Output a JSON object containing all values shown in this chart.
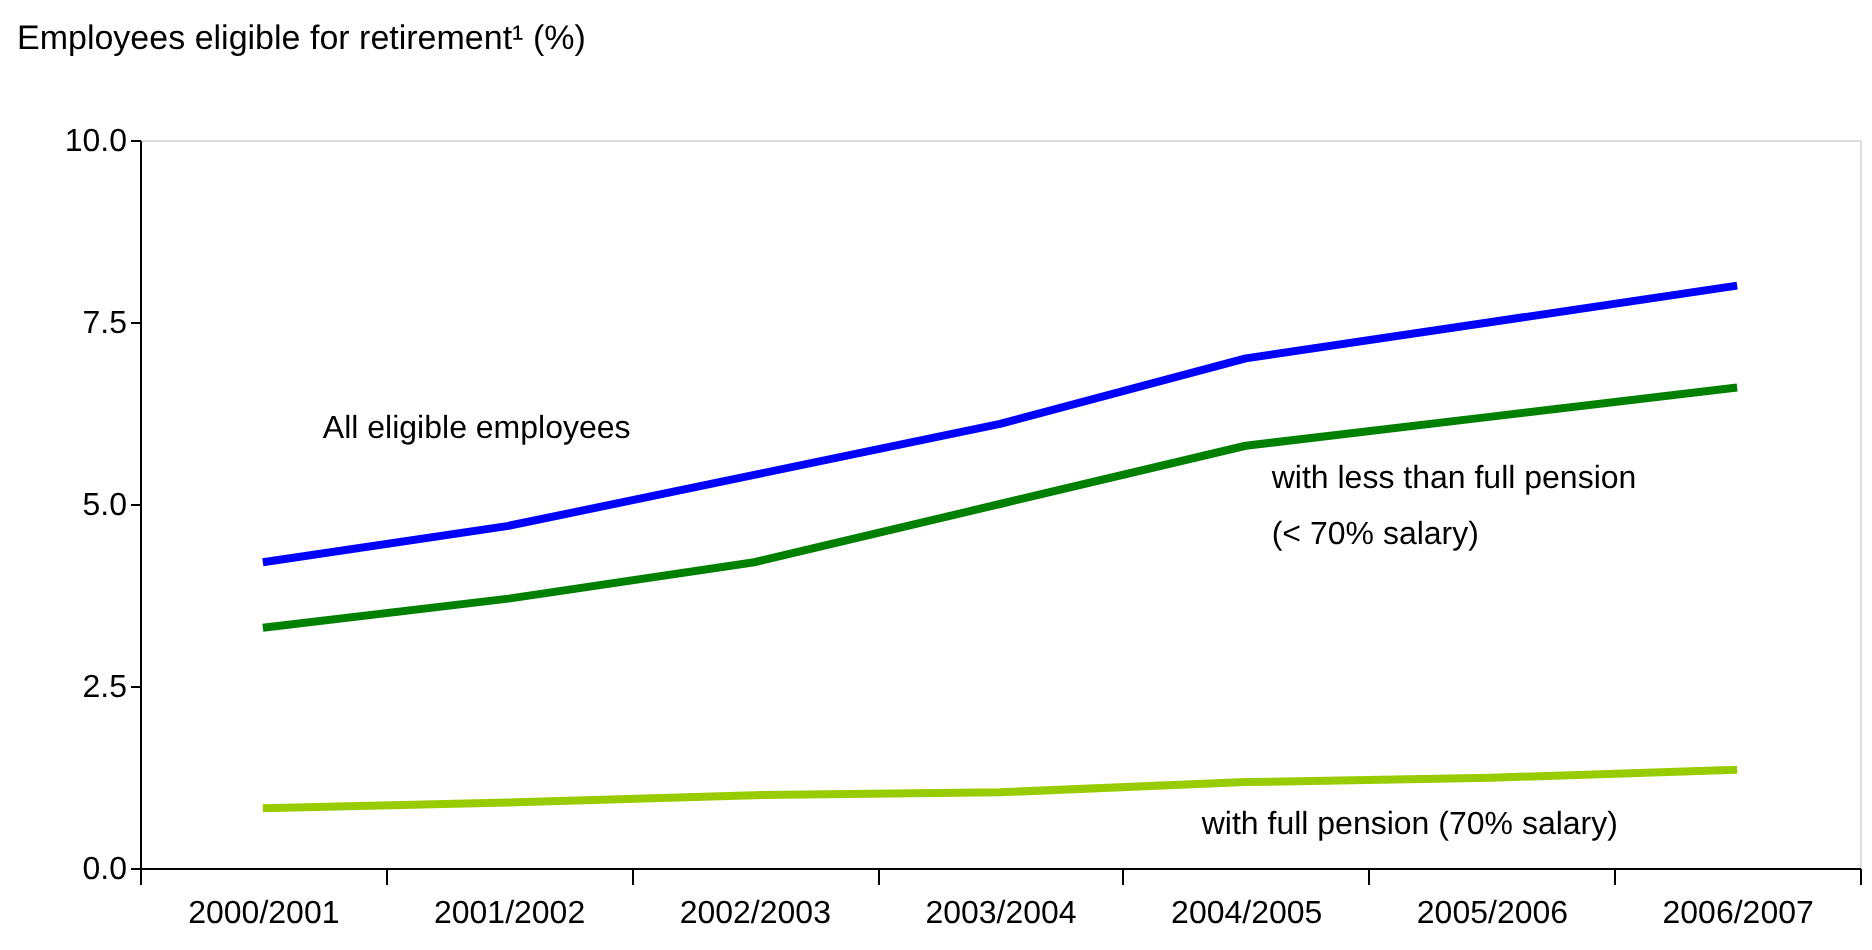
{
  "chart_data": {
    "type": "line",
    "ylabel": "Employees eligible for retirement¹ (%)",
    "categories": [
      "2000/2001",
      "2001/2002",
      "2002/2003",
      "2003/2004",
      "2004/2005",
      "2005/2006",
      "2006/2007"
    ],
    "series": [
      {
        "name": "All eligible employees",
        "color": "#0000ff",
        "values": [
          4.2,
          4.7,
          5.4,
          6.1,
          7.0,
          7.5,
          8.0
        ]
      },
      {
        "name": "with less than full pension\n(< 70% salary)",
        "color": "#008000",
        "values": [
          3.3,
          3.7,
          4.2,
          5.0,
          5.8,
          6.2,
          6.6
        ]
      },
      {
        "name": "with full pension (70% salary)",
        "color": "#99cc00",
        "values": [
          0.82,
          0.9,
          1.0,
          1.04,
          1.18,
          1.24,
          1.35
        ]
      }
    ],
    "ylim": [
      0,
      10
    ],
    "yticks": [
      {
        "value": 0,
        "label": "0.0"
      },
      2.5,
      {
        "value": 5,
        "label": "5.0"
      },
      7.5,
      {
        "value": 10,
        "label": "10.0"
      }
    ],
    "grid": false,
    "legend": false,
    "marker": "none",
    "line_style": "solid"
  }
}
